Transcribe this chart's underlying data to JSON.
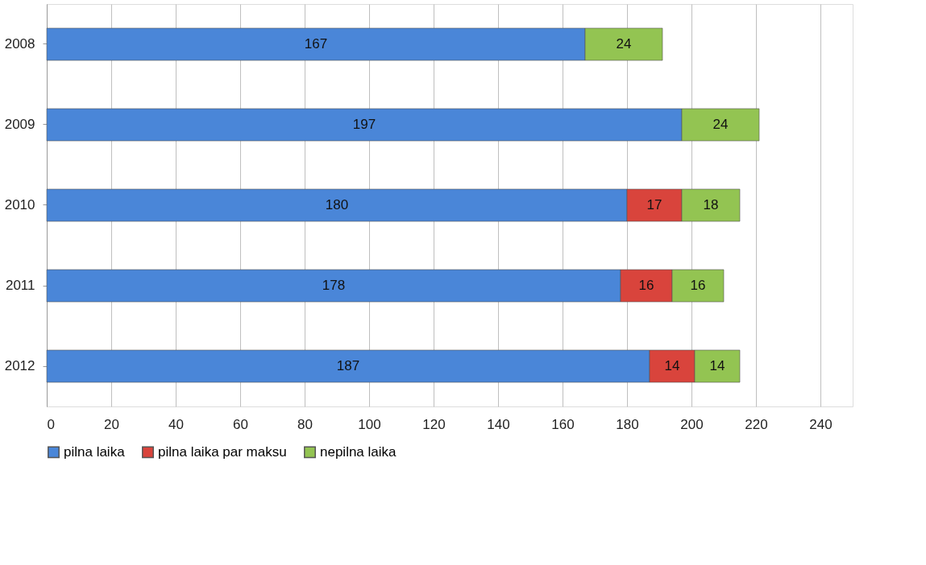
{
  "chart_data": {
    "type": "bar",
    "orientation": "horizontal",
    "stacked": true,
    "categories": [
      "2008",
      "2009",
      "2010",
      "2011",
      "2012"
    ],
    "series": [
      {
        "name": "pilna laika",
        "color": "#4a86d8",
        "values": [
          167,
          197,
          180,
          178,
          187
        ]
      },
      {
        "name": "pilna laika par maksu",
        "color": "#d9443c",
        "values": [
          null,
          null,
          17,
          16,
          14
        ]
      },
      {
        "name": "nepilna laika",
        "color": "#93c452",
        "values": [
          24,
          24,
          18,
          16,
          14
        ]
      }
    ],
    "xlim": [
      0,
      250
    ],
    "xticks": [
      0,
      20,
      40,
      60,
      80,
      100,
      120,
      140,
      160,
      180,
      200,
      220,
      240
    ],
    "grid": "x",
    "legend": "bottom",
    "data_labels": true
  }
}
